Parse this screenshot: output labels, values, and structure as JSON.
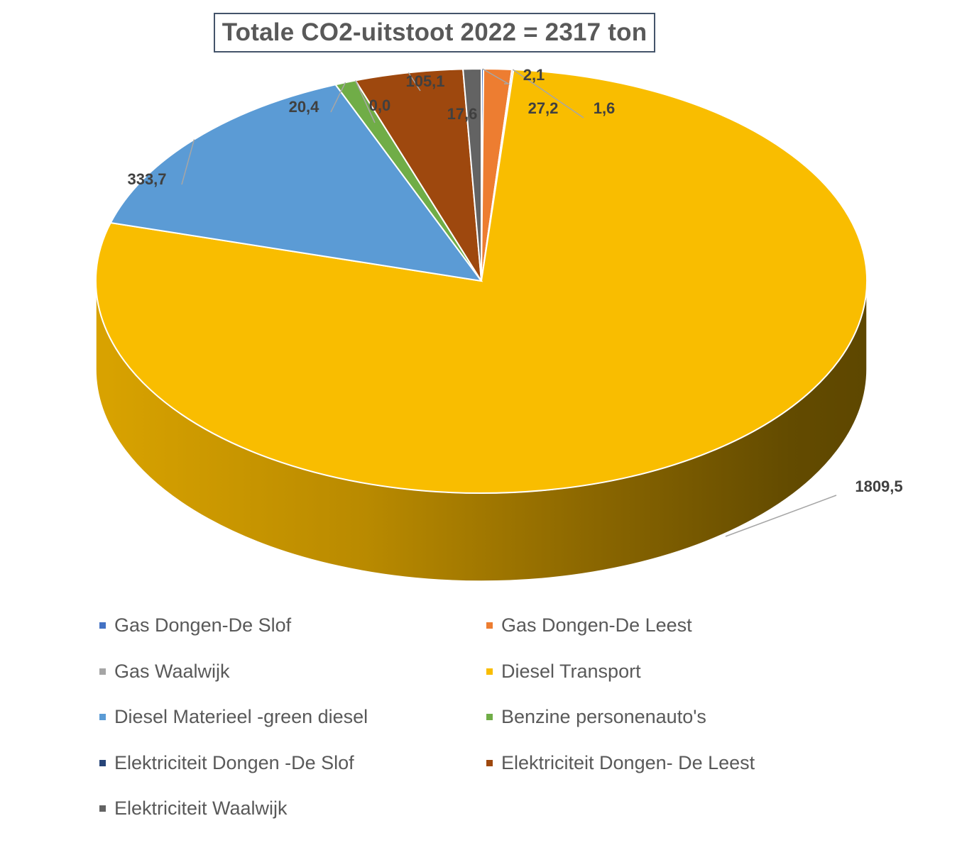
{
  "chart_data": {
    "type": "pie",
    "style": "3d",
    "title": "Totale CO2-uitstoot 2022 = 2317 ton",
    "series": [
      {
        "name": "Gas Dongen-De Slof",
        "value": 2.1,
        "label": "2,1",
        "color": "#4472c4"
      },
      {
        "name": "Gas Dongen-De Leest",
        "value": 27.2,
        "label": "27,2",
        "color": "#ed7d31"
      },
      {
        "name": "Gas Waalwijk",
        "value": 1.6,
        "label": "1,6",
        "color": "#a5a5a5"
      },
      {
        "name": "Diesel Transport",
        "value": 1809.5,
        "label": "1809,5",
        "color": "#f9bd00"
      },
      {
        "name": "Diesel Materieel -green diesel",
        "value": 333.7,
        "label": "333,7",
        "color": "#5b9bd5"
      },
      {
        "name": "Benzine personenauto's",
        "value": 20.4,
        "label": "20,4",
        "color": "#70ad47"
      },
      {
        "name": "Elektriciteit Dongen -De Slof",
        "value": 0.0,
        "label": "0,0",
        "color": "#264478"
      },
      {
        "name": "Elektriciteit Dongen- De Leest",
        "value": 105.1,
        "label": "105,1",
        "color": "#9e480e"
      },
      {
        "name": "Elektriciteit Waalwijk",
        "value": 17.6,
        "label": "17,6",
        "color": "#636363"
      }
    ],
    "legend_position": "bottom",
    "decimal_separator": ","
  }
}
